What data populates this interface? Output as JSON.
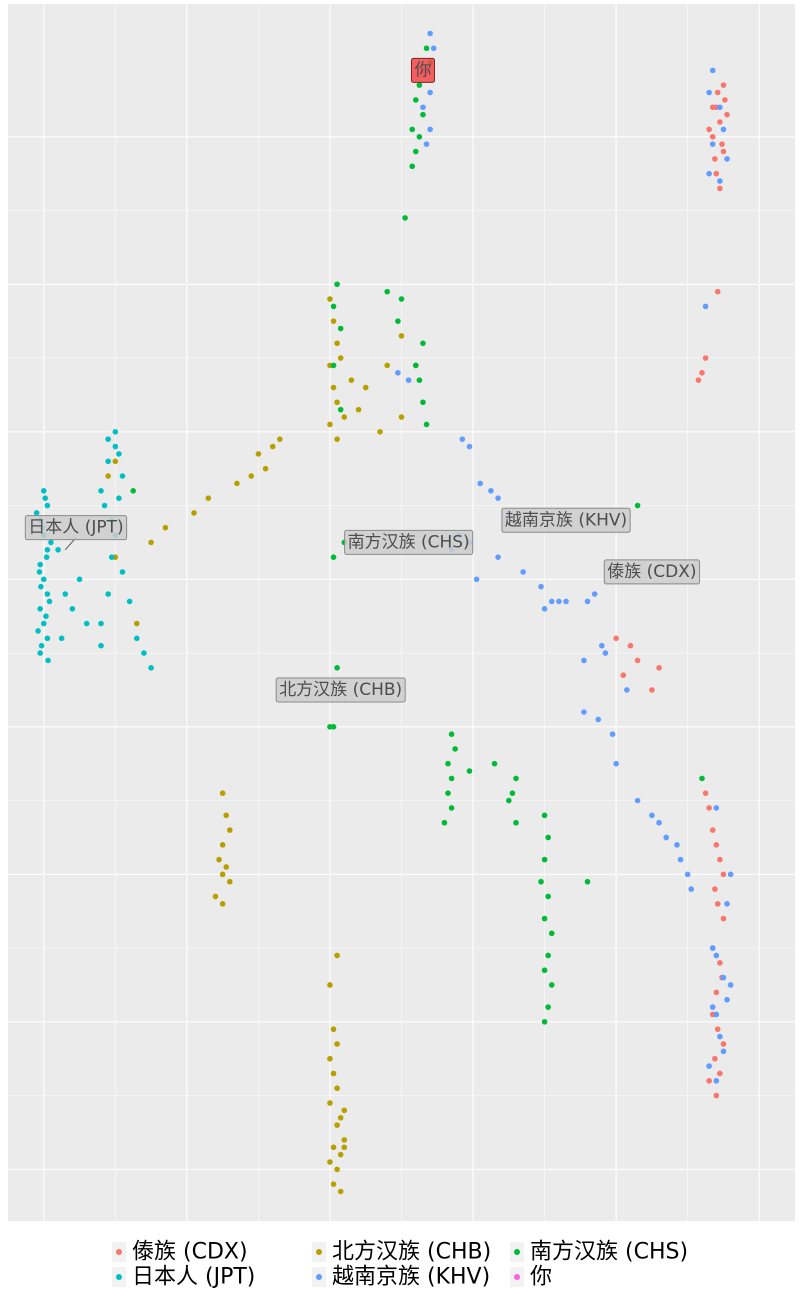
{
  "chart_data": {
    "type": "scatter",
    "title": "",
    "xlabel": "",
    "ylabel": "",
    "grid": true,
    "legend_position": "bottom",
    "xlim": [
      -0.5,
      10.5
    ],
    "ylim": [
      -0.35,
      7.9
    ],
    "series": [
      {
        "name": "傣族 (CDX)",
        "color": "#F8766D",
        "points": [
          [
            9.4,
            7.2
          ],
          [
            9.45,
            7.1
          ],
          [
            9.35,
            7.0
          ],
          [
            9.5,
            6.9
          ],
          [
            9.42,
            7.3
          ],
          [
            9.55,
            7.15
          ],
          [
            9.3,
            7.05
          ],
          [
            9.48,
            6.95
          ],
          [
            9.38,
            6.85
          ],
          [
            9.52,
            7.25
          ],
          [
            9.4,
            6.75
          ],
          [
            9.45,
            6.65
          ],
          [
            9.5,
            7.35
          ],
          [
            9.35,
            7.2
          ],
          [
            9.42,
            5.95
          ],
          [
            9.2,
            5.4
          ],
          [
            9.15,
            5.35
          ],
          [
            9.25,
            5.5
          ],
          [
            8.0,
            3.6
          ],
          [
            8.2,
            3.55
          ],
          [
            8.3,
            3.45
          ],
          [
            8.1,
            3.35
          ],
          [
            8.5,
            3.25
          ],
          [
            8.6,
            3.4
          ],
          [
            9.25,
            2.55
          ],
          [
            9.3,
            2.45
          ],
          [
            9.35,
            2.3
          ],
          [
            9.4,
            2.2
          ],
          [
            9.45,
            2.1
          ],
          [
            9.5,
            2.0
          ],
          [
            9.38,
            1.9
          ],
          [
            9.42,
            1.8
          ],
          [
            9.5,
            1.7
          ],
          [
            9.35,
            1.5
          ],
          [
            9.45,
            1.4
          ],
          [
            9.48,
            1.3
          ],
          [
            9.4,
            1.2
          ],
          [
            9.35,
            1.05
          ],
          [
            9.42,
            0.95
          ],
          [
            9.5,
            0.85
          ],
          [
            9.38,
            0.75
          ],
          [
            9.45,
            0.65
          ],
          [
            9.3,
            0.6
          ],
          [
            9.4,
            0.5
          ]
        ]
      },
      {
        "name": "北方汉族 (CHB)",
        "color": "#B79F00",
        "points": [
          [
            4.0,
            5.9
          ],
          [
            4.05,
            5.75
          ],
          [
            4.1,
            5.6
          ],
          [
            4.0,
            5.45
          ],
          [
            4.05,
            5.3
          ],
          [
            4.1,
            5.2
          ],
          [
            4.0,
            5.05
          ],
          [
            4.1,
            4.95
          ],
          [
            4.2,
            5.1
          ],
          [
            4.3,
            5.35
          ],
          [
            4.5,
            5.3
          ],
          [
            4.4,
            5.15
          ],
          [
            4.15,
            5.5
          ],
          [
            5.0,
            5.65
          ],
          [
            4.8,
            5.45
          ],
          [
            5.2,
            5.45
          ],
          [
            5.0,
            5.1
          ],
          [
            4.7,
            5.0
          ],
          [
            3.3,
            4.95
          ],
          [
            3.2,
            4.9
          ],
          [
            3.0,
            4.85
          ],
          [
            3.1,
            4.75
          ],
          [
            2.9,
            4.7
          ],
          [
            2.7,
            4.65
          ],
          [
            2.3,
            4.55
          ],
          [
            2.1,
            4.45
          ],
          [
            1.7,
            4.35
          ],
          [
            1.5,
            4.25
          ],
          [
            1.0,
            4.15
          ],
          [
            0.9,
            4.7
          ],
          [
            1.0,
            4.8
          ],
          [
            1.3,
            3.7
          ],
          [
            2.5,
            2.55
          ],
          [
            2.55,
            2.4
          ],
          [
            2.6,
            2.3
          ],
          [
            2.5,
            2.2
          ],
          [
            2.45,
            2.1
          ],
          [
            2.55,
            2.05
          ],
          [
            2.5,
            2.0
          ],
          [
            2.6,
            1.95
          ],
          [
            2.4,
            1.85
          ],
          [
            2.5,
            1.8
          ],
          [
            4.1,
            1.45
          ],
          [
            4.0,
            1.25
          ],
          [
            4.05,
            0.95
          ],
          [
            4.1,
            0.85
          ],
          [
            4.0,
            0.75
          ],
          [
            4.05,
            0.65
          ],
          [
            4.1,
            0.55
          ],
          [
            4.0,
            0.45
          ],
          [
            4.15,
            0.35
          ],
          [
            4.2,
            0.4
          ],
          [
            4.1,
            0.3
          ],
          [
            4.2,
            0.2
          ],
          [
            4.05,
            0.15
          ],
          [
            4.15,
            0.1
          ],
          [
            4.0,
            0.05
          ],
          [
            4.1,
            0.0
          ],
          [
            4.2,
            0.15
          ],
          [
            4.05,
            -0.1
          ],
          [
            4.15,
            -0.15
          ]
        ]
      },
      {
        "name": "南方汉族 (CHS)",
        "color": "#00BA38",
        "points": [
          [
            5.35,
            7.6
          ],
          [
            5.4,
            7.5
          ],
          [
            5.25,
            7.35
          ],
          [
            5.2,
            7.25
          ],
          [
            5.3,
            7.15
          ],
          [
            5.15,
            7.05
          ],
          [
            5.25,
            7.0
          ],
          [
            5.2,
            6.9
          ],
          [
            5.15,
            6.8
          ],
          [
            5.05,
            6.45
          ],
          [
            4.8,
            5.95
          ],
          [
            5.0,
            5.9
          ],
          [
            4.95,
            5.75
          ],
          [
            5.3,
            5.6
          ],
          [
            5.2,
            5.45
          ],
          [
            5.25,
            5.35
          ],
          [
            5.3,
            5.2
          ],
          [
            5.35,
            5.05
          ],
          [
            4.1,
            6.0
          ],
          [
            4.05,
            5.85
          ],
          [
            4.15,
            5.7
          ],
          [
            4.05,
            5.45
          ],
          [
            4.15,
            5.15
          ],
          [
            4.2,
            4.25
          ],
          [
            4.05,
            4.15
          ],
          [
            4.1,
            3.4
          ],
          [
            4.05,
            3.0
          ],
          [
            5.7,
            2.95
          ],
          [
            5.75,
            2.85
          ],
          [
            5.65,
            2.75
          ],
          [
            5.7,
            2.65
          ],
          [
            5.65,
            2.55
          ],
          [
            5.7,
            2.45
          ],
          [
            5.6,
            2.35
          ],
          [
            5.95,
            2.7
          ],
          [
            6.3,
            2.75
          ],
          [
            6.5,
            2.5
          ],
          [
            6.6,
            2.35
          ],
          [
            6.55,
            2.55
          ],
          [
            6.6,
            2.65
          ],
          [
            7.0,
            2.4
          ],
          [
            7.05,
            2.25
          ],
          [
            7.0,
            2.1
          ],
          [
            6.95,
            1.95
          ],
          [
            7.05,
            1.85
          ],
          [
            7.0,
            1.7
          ],
          [
            7.1,
            1.6
          ],
          [
            7.05,
            1.45
          ],
          [
            7.0,
            1.35
          ],
          [
            7.1,
            1.25
          ],
          [
            7.05,
            1.1
          ],
          [
            7.0,
            1.0
          ],
          [
            7.6,
            1.95
          ],
          [
            8.3,
            4.5
          ],
          [
            4.0,
            3.0
          ],
          [
            1.25,
            4.6
          ],
          [
            9.2,
            2.65
          ]
        ]
      },
      {
        "name": "日本人 (JPT)",
        "color": "#00BFC4",
        "points": [
          [
            0.0,
            4.6
          ],
          [
            0.05,
            4.5
          ],
          [
            -0.05,
            4.4
          ],
          [
            0.0,
            4.3
          ],
          [
            0.05,
            4.2
          ],
          [
            -0.05,
            4.1
          ],
          [
            0.0,
            4.0
          ],
          [
            0.05,
            3.9
          ],
          [
            -0.05,
            3.8
          ],
          [
            0.0,
            3.7
          ],
          [
            0.05,
            3.6
          ],
          [
            -0.05,
            3.5
          ],
          [
            0.02,
            4.55
          ],
          [
            -0.02,
            4.35
          ],
          [
            0.04,
            4.15
          ],
          [
            -0.04,
            3.95
          ],
          [
            0.03,
            3.75
          ],
          [
            -0.03,
            3.55
          ],
          [
            0.06,
            3.45
          ],
          [
            -0.06,
            4.05
          ],
          [
            0.08,
            3.85
          ],
          [
            -0.08,
            3.65
          ],
          [
            0.1,
            4.25
          ],
          [
            -0.1,
            4.45
          ],
          [
            0.2,
            4.2
          ],
          [
            0.3,
            3.9
          ],
          [
            0.25,
            3.6
          ],
          [
            0.4,
            3.8
          ],
          [
            0.5,
            4.0
          ],
          [
            0.6,
            3.7
          ],
          [
            0.8,
            3.7
          ],
          [
            0.9,
            3.9
          ],
          [
            0.8,
            4.6
          ],
          [
            0.85,
            4.5
          ],
          [
            0.9,
            4.8
          ],
          [
            1.0,
            4.9
          ],
          [
            1.1,
            4.7
          ],
          [
            1.05,
            4.55
          ],
          [
            0.95,
            4.4
          ],
          [
            1.0,
            4.3
          ],
          [
            0.95,
            4.15
          ],
          [
            1.1,
            4.05
          ],
          [
            1.2,
            3.85
          ],
          [
            1.3,
            3.6
          ],
          [
            1.4,
            3.5
          ],
          [
            1.5,
            3.4
          ],
          [
            0.8,
            3.55
          ],
          [
            1.0,
            5.0
          ],
          [
            1.05,
            4.85
          ],
          [
            0.9,
            4.95
          ]
        ]
      },
      {
        "name": "越南京族 (KHV)",
        "color": "#619CFF",
        "points": [
          [
            5.4,
            7.7
          ],
          [
            5.45,
            7.6
          ],
          [
            5.35,
            7.45
          ],
          [
            5.4,
            7.3
          ],
          [
            5.3,
            7.2
          ],
          [
            5.4,
            7.05
          ],
          [
            5.35,
            6.95
          ],
          [
            9.35,
            7.45
          ],
          [
            9.3,
            7.3
          ],
          [
            9.45,
            7.2
          ],
          [
            9.5,
            7.05
          ],
          [
            9.35,
            6.95
          ],
          [
            9.55,
            6.85
          ],
          [
            9.3,
            6.75
          ],
          [
            9.45,
            6.7
          ],
          [
            9.25,
            5.85
          ],
          [
            4.95,
            5.4
          ],
          [
            5.1,
            5.35
          ],
          [
            5.85,
            4.95
          ],
          [
            5.95,
            4.9
          ],
          [
            6.1,
            4.65
          ],
          [
            6.25,
            4.6
          ],
          [
            6.35,
            4.55
          ],
          [
            6.5,
            4.45
          ],
          [
            5.8,
            4.3
          ],
          [
            5.95,
            4.25
          ],
          [
            5.7,
            4.2
          ],
          [
            6.05,
            4.0
          ],
          [
            6.35,
            4.15
          ],
          [
            6.7,
            4.05
          ],
          [
            6.95,
            3.95
          ],
          [
            7.1,
            3.85
          ],
          [
            7.2,
            3.85
          ],
          [
            7.6,
            3.85
          ],
          [
            7.7,
            3.9
          ],
          [
            7.8,
            3.55
          ],
          [
            7.55,
            3.45
          ],
          [
            7.85,
            3.5
          ],
          [
            7.55,
            3.1
          ],
          [
            7.75,
            3.05
          ],
          [
            7.95,
            2.95
          ],
          [
            8.0,
            2.75
          ],
          [
            8.3,
            2.5
          ],
          [
            8.5,
            2.4
          ],
          [
            8.6,
            2.35
          ],
          [
            8.7,
            2.25
          ],
          [
            8.85,
            2.2
          ],
          [
            8.9,
            2.1
          ],
          [
            9.0,
            2.0
          ],
          [
            9.05,
            1.9
          ],
          [
            9.4,
            2.45
          ],
          [
            9.6,
            2.0
          ],
          [
            9.55,
            1.8
          ],
          [
            9.35,
            1.5
          ],
          [
            9.4,
            1.45
          ],
          [
            9.5,
            1.3
          ],
          [
            9.35,
            1.1
          ],
          [
            9.4,
            1.05
          ],
          [
            9.45,
            0.9
          ],
          [
            9.5,
            0.8
          ],
          [
            9.3,
            0.7
          ],
          [
            9.4,
            0.6
          ],
          [
            9.55,
            1.15
          ],
          [
            9.6,
            1.25
          ],
          [
            7.0,
            3.8
          ],
          [
            8.15,
            3.25
          ],
          [
            7.3,
            3.85
          ]
        ]
      },
      {
        "name": "你",
        "color": "#F564E3",
        "points": [
          [
            5.3,
            7.45
          ]
        ]
      }
    ],
    "annotations": [
      {
        "text": "你",
        "x": 5.3,
        "y": 7.45,
        "highlight": true
      },
      {
        "text": "日本人 (JPT)",
        "x": 0.45,
        "y": 4.35,
        "target": [
          0.3,
          4.2
        ]
      },
      {
        "text": "南方汉族 (CHS)",
        "x": 5.1,
        "y": 4.25
      },
      {
        "text": "越南京族 (KHV)",
        "x": 7.3,
        "y": 4.4
      },
      {
        "text": "傣族 (CDX)",
        "x": 8.5,
        "y": 4.05
      },
      {
        "text": "北方汉族 (CHB)",
        "x": 4.15,
        "y": 3.25
      }
    ]
  }
}
